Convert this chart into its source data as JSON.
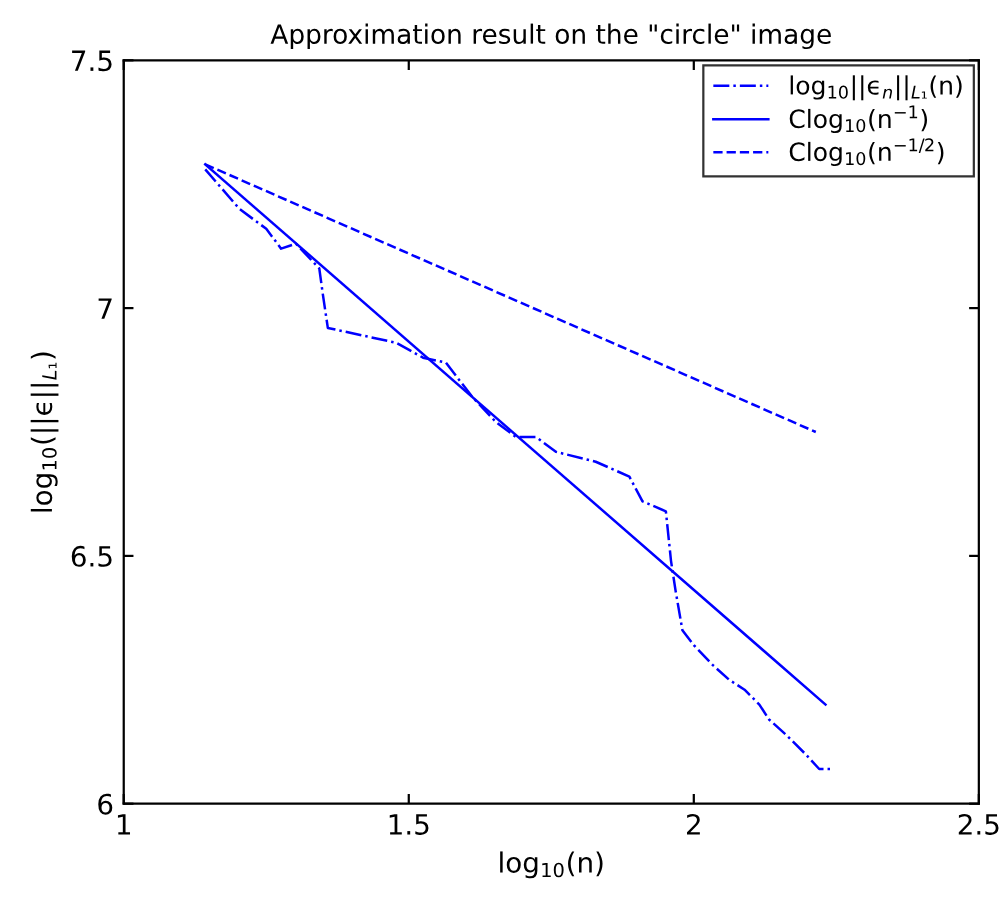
{
  "chart_data": {
    "type": "line",
    "title": "Approximation result on the \"circle\" image",
    "xlabel": "log$_{10}$(n)",
    "ylabel": "log$_{10}$(||ϵ||$_{L₁}$)",
    "series": [
      {
        "name": "log$_{10}$||ϵ$_{n}$||$_{L₁}$(n)",
        "color": "#0000ff",
        "line_style": "dashdot",
        "x": [
          1.143,
          1.203,
          1.25,
          1.276,
          1.302,
          1.343,
          1.349,
          1.358,
          1.478,
          1.525,
          1.565,
          1.612,
          1.653,
          1.688,
          1.723,
          1.758,
          1.828,
          1.887,
          1.91,
          1.951,
          1.96,
          1.968,
          1.98,
          2.0,
          2.033,
          2.062,
          2.089,
          2.115,
          2.132,
          2.161,
          2.196,
          2.22,
          2.243
        ],
        "values": [
          7.28,
          7.2,
          7.16,
          7.12,
          7.13,
          7.08,
          7.03,
          6.96,
          6.93,
          6.9,
          6.89,
          6.82,
          6.77,
          6.74,
          6.74,
          6.71,
          6.69,
          6.66,
          6.61,
          6.59,
          6.49,
          6.43,
          6.35,
          6.32,
          6.28,
          6.25,
          6.23,
          6.2,
          6.17,
          6.14,
          6.1,
          6.07,
          6.07
        ]
      },
      {
        "name": "Clog$_{10}$(n$^{−1}$)",
        "color": "#0000ff",
        "line_style": "solid",
        "x": [
          1.143,
          2.231
        ],
        "values": [
          7.29,
          6.2
        ]
      },
      {
        "name": "Clog$_{10}$(n$^{−1/2}$)",
        "color": "#0000ff",
        "line_style": "dashed",
        "x": [
          1.143,
          2.214
        ],
        "values": [
          7.29,
          6.75
        ]
      }
    ],
    "xlim": [
      1,
      2.5
    ],
    "xticks": [
      1,
      1.5,
      2,
      2.5
    ],
    "ylim": [
      6,
      7.5
    ],
    "yticks": [
      6,
      6.5,
      7,
      7.5
    ],
    "grid": false,
    "legend": "top right",
    "marker": "none"
  }
}
